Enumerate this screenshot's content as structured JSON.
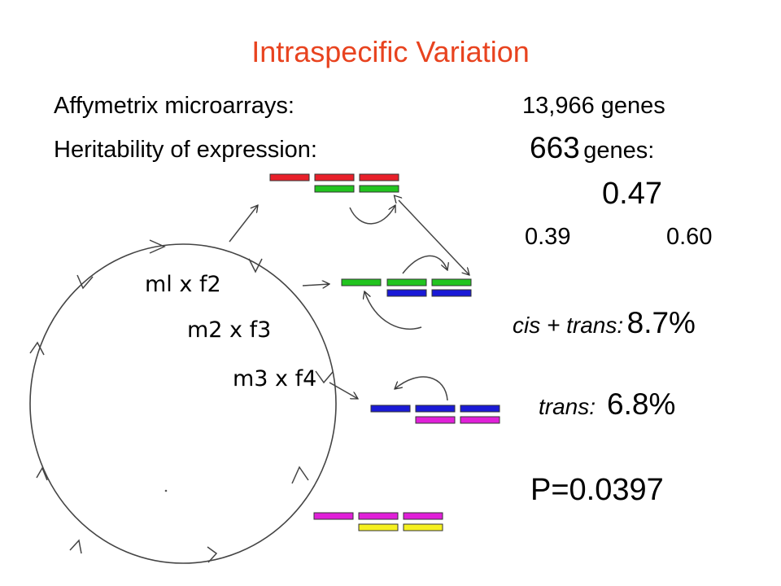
{
  "title": "Intraspecific Variation",
  "microarrays": {
    "label": "Affymetrix microarrays:",
    "value": "13,966 genes"
  },
  "heritability": {
    "label": "Heritability of expression:",
    "count": "663",
    "unit": "genes:"
  },
  "heritability_mean": "0.47",
  "heritability_low": "0.39",
  "heritability_high": "0.60",
  "cis_trans": {
    "label": "cis + trans:",
    "value": "8.7%"
  },
  "trans": {
    "label": "trans:",
    "value": "6.8%"
  },
  "p_value": "P=0.0397",
  "crosses": [
    "ml x f2",
    "m2 x f3",
    "m3 x f4"
  ],
  "colors": {
    "title": "#e8431f",
    "red": "#e8202a",
    "green": "#22c41f",
    "blue": "#1a1ad6",
    "magenta": "#e020d8",
    "yellow": "#f5f020",
    "outline": "#333333"
  }
}
